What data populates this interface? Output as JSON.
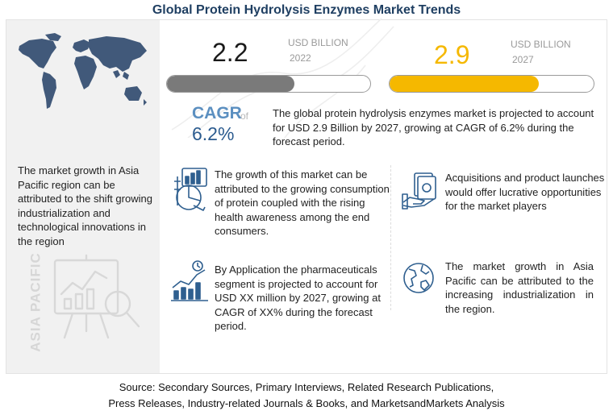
{
  "title": "Global Protein Hydrolysis Enzymes Market Trends",
  "metrics": [
    {
      "value": "2.2",
      "unit": "USD BILLION",
      "year": "2022",
      "fill_fraction": 0.625,
      "color": "#7a7a7a"
    },
    {
      "value": "2.9",
      "unit": "USD BILLION",
      "year": "2027",
      "fill_fraction": 0.73,
      "color": "#f5b800"
    }
  ],
  "chart_data": {
    "type": "bar",
    "categories": [
      "2022",
      "2027"
    ],
    "values": [
      2.2,
      2.9
    ],
    "ylabel": "USD BILLION",
    "cagr": "6.2%"
  },
  "cagr": {
    "label": "CAGR",
    "of": "of",
    "value": "6.2%"
  },
  "summary": "The global protein hydrolysis enzymes market is projected to account for USD 2.9 Billion by 2027, growing at CAGR of 6.2% during the forecast period.",
  "left_panel": {
    "text": "The market growth in Asia Pacific region can be attributed to the shift growing industrialization and technological innovations in the region",
    "vertical_label": "ASIA PACIFIC"
  },
  "insights": {
    "growth_drivers": "The growth of this market can be attributed to the growing consumption of protein coupled with the rising health awareness among the end consumers.",
    "acquisitions": "Acquisitions and product launches would offer lucrative opportunities for the market players",
    "application": "By Application the pharmaceuticals segment is projected to account for USD XX million by 2027, growing at CAGR of XX% during the forecast period.",
    "asia_pacific": "The market growth in Asia Pacific can be attributed to the increasing industrialization in the region."
  },
  "footer": {
    "line1": "Source: Secondary Sources, Primary Interviews, Related Research Publications,",
    "line2": "Press Releases, Industry-related Journals & Books, and MarketsandMarkets Analysis"
  },
  "colors": {
    "title": "#1f3f62",
    "accent": "#f5b800",
    "cagr": "#5b8fc0",
    "icon": "#2f5f8f"
  }
}
